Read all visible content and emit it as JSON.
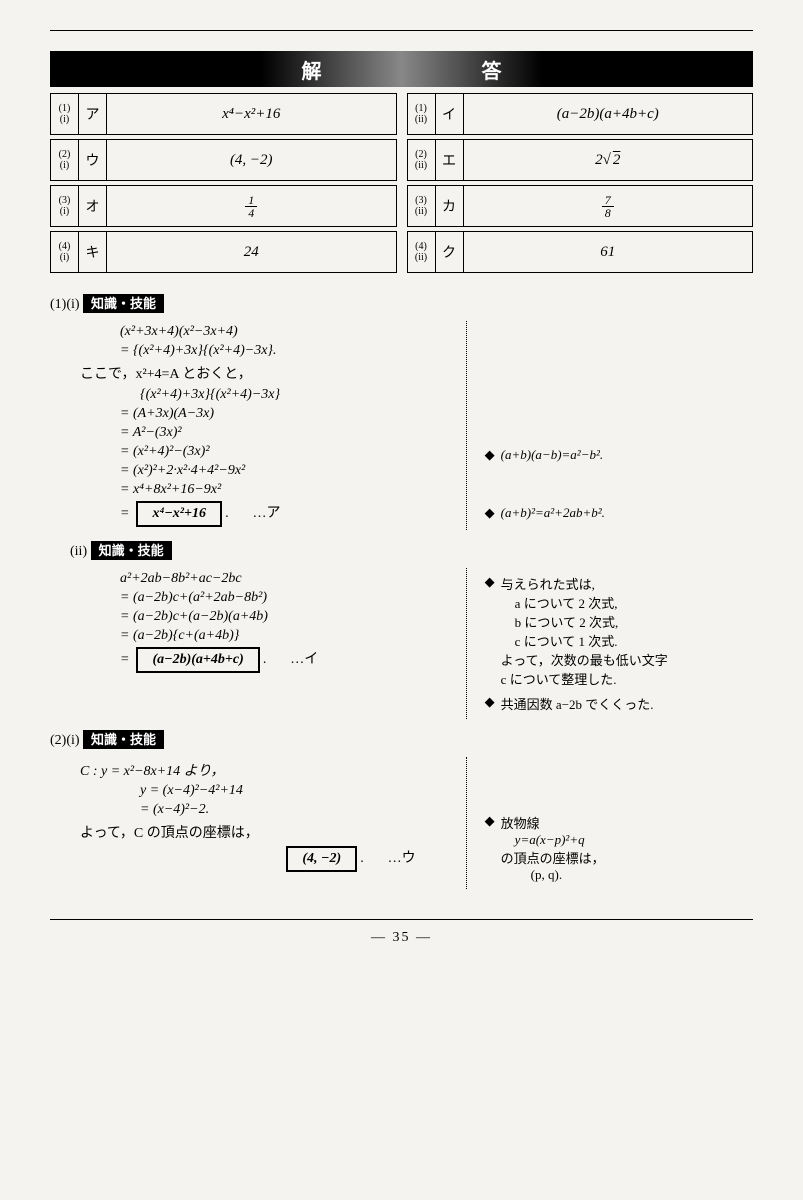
{
  "header": "解　　答",
  "answers_left": [
    {
      "idx1": "(1)",
      "idx2": "(i)",
      "kana": "ア",
      "val": "x⁴−x²+16"
    },
    {
      "idx1": "(2)",
      "idx2": "(i)",
      "kana": "ウ",
      "val": "(4, −2)"
    },
    {
      "idx1": "(3)",
      "idx2": "(i)",
      "kana": "オ",
      "val": "1/4"
    },
    {
      "idx1": "(4)",
      "idx2": "(i)",
      "kana": "キ",
      "val": "24"
    }
  ],
  "answers_right": [
    {
      "idx1": "(1)",
      "idx2": "(ii)",
      "kana": "イ",
      "val": "(a−2b)(a+4b+c)"
    },
    {
      "idx1": "(2)",
      "idx2": "(ii)",
      "kana": "エ",
      "val": "2√2"
    },
    {
      "idx1": "(3)",
      "idx2": "(ii)",
      "kana": "カ",
      "val": "7/8"
    },
    {
      "idx1": "(4)",
      "idx2": "(ii)",
      "kana": "ク",
      "val": "61"
    }
  ],
  "sec1i": {
    "qnum": "(1)(i)",
    "badge": "知識・技能",
    "l1": "(x²+3x+4)(x²−3x+4)",
    "l2": "= {(x²+4)+3x}{(x²+4)−3x}.",
    "t1": "ここで，x²+4=A とおくと，",
    "l3": "{(x²+4)+3x}{(x²+4)−3x}",
    "l4": "= (A+3x)(A−3x)",
    "l5": "= A²−(3x)²",
    "l6": "= (x²+4)²−(3x)²",
    "l7": "= (x²)²+2·x²·4+4²−9x²",
    "l8": "= x⁴+8x²+16−9x²",
    "box": "x⁴−x²+16",
    "ref": "…ア",
    "note1": "(a+b)(a−b)=a²−b².",
    "note2": "(a+b)²=a²+2ab+b²."
  },
  "sec1ii": {
    "qnum": "(ii)",
    "badge": "知識・技能",
    "l1": "a²+2ab−8b²+ac−2bc",
    "l2": "= (a−2b)c+(a²+2ab−8b²)",
    "l3": "= (a−2b)c+(a−2b)(a+4b)",
    "l4": "= (a−2b){c+(a+4b)}",
    "box": "(a−2b)(a+4b+c)",
    "ref": "…イ",
    "note1": "与えられた式は,",
    "note1a": "a について 2 次式,",
    "note1b": "b について 2 次式,",
    "note1c": "c について 1 次式.",
    "note1d": "よって，次数の最も低い文字",
    "note1e": "c について整理した.",
    "note2": "共通因数 a−2b でくくった."
  },
  "sec2i": {
    "qnum": "(2)(i)",
    "badge": "知識・技能",
    "l1": "C : y = x²−8x+14 より，",
    "l2": "y = (x−4)²−4²+14",
    "l3": "= (x−4)²−2.",
    "t1": "よって，C の頂点の座標は，",
    "box": "(4, −2)",
    "ref": "…ウ",
    "note1": "放物線",
    "note1a": "y=a(x−p)²+q",
    "note1b": "の頂点の座標は，",
    "note1c": "(p, q)."
  },
  "pagenum": "— 35 —"
}
